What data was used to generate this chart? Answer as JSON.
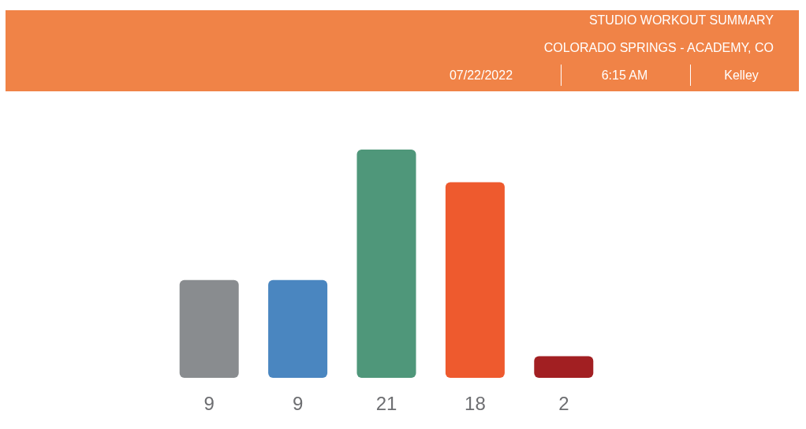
{
  "chart_data": {
    "type": "bar",
    "title": "STUDIO WORKOUT SUMMARY",
    "subtitle": "COLORADO SPRINGS - ACADEMY, CO",
    "annotations": [
      "07/22/2022",
      "6:15 AM",
      "Kelley"
    ],
    "categories": [
      null,
      null,
      null,
      null,
      null
    ],
    "values": [
      9,
      9,
      21,
      18,
      2
    ],
    "colors": [
      "#898c8f",
      "#4a86c0",
      "#4f977a",
      "#ee5a2e",
      "#a21f22"
    ],
    "data_labels": true
  }
}
